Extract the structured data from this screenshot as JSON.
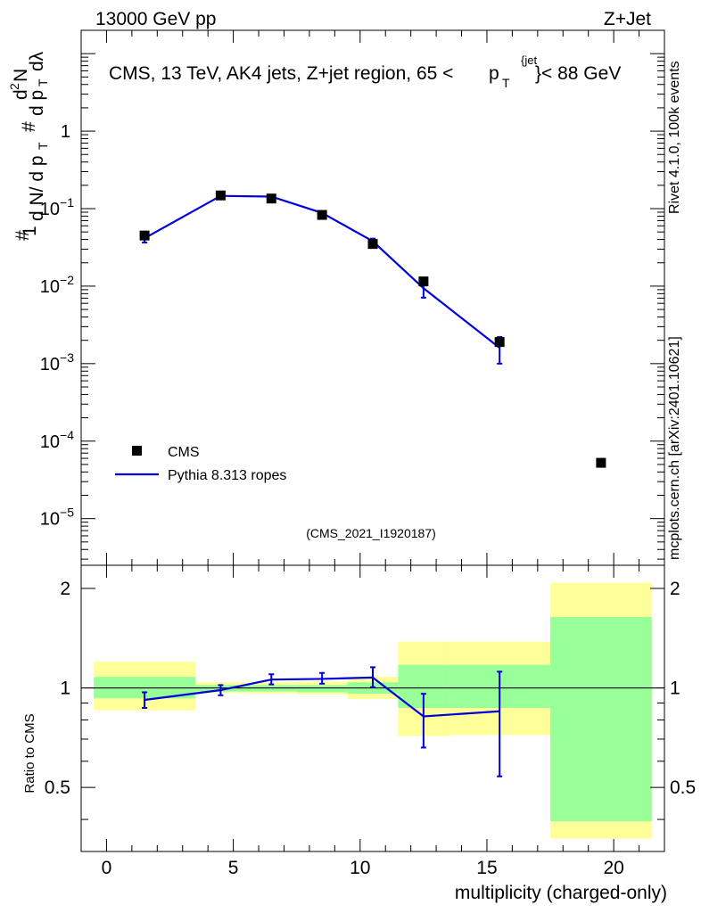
{
  "header": {
    "left": "13000 GeV pp",
    "right": "Z+Jet"
  },
  "side_labels": {
    "rivet": "Rivet 4.1.0,  100k events",
    "mcplots": "mcplots.cern.ch [arXiv:2401.10621]"
  },
  "chart_data": [
    {
      "type": "scatter",
      "title": "CMS, 13 TeV, AK4 jets, Z+jet region, 65 <p_T^{jet}< 88 GeV",
      "title_main": "CMS, 13 TeV, AK4 jets, Z+jet region, 65 <",
      "title_p": "p",
      "title_T": "T",
      "title_jet": "{jet",
      "title_tail": "}< 88 GeV",
      "watermark": "(CMS_2021_I1920187)",
      "ylabel": "1/N dN/dp_T d²N/dp_T dλ",
      "yscale": "log",
      "xlim": [
        -1,
        22
      ],
      "ylim": [
        2.5e-06,
        20
      ],
      "y_ticks": [
        {
          "value": 1,
          "base": "1",
          "exp": ""
        },
        {
          "value": 0.1,
          "base": "10",
          "exp": "−1"
        },
        {
          "value": 0.01,
          "base": "10",
          "exp": "−2"
        },
        {
          "value": 0.001,
          "base": "10",
          "exp": "−3"
        },
        {
          "value": 0.0001,
          "base": "10",
          "exp": "−4"
        },
        {
          "value": 1e-05,
          "base": "10",
          "exp": "−5"
        }
      ],
      "legend": [
        {
          "name": "CMS",
          "marker": "square",
          "color": "#000000"
        },
        {
          "name": "Pythia 8.313 ropes",
          "marker": "line",
          "color": "#0000dd"
        }
      ],
      "series": [
        {
          "name": "CMS",
          "x": [
            1.5,
            4.5,
            6.5,
            8.5,
            10.5,
            12.5,
            15.5,
            19.5
          ],
          "y": [
            0.045,
            0.148,
            0.135,
            0.083,
            0.035,
            0.0115,
            0.0019,
            5.25e-05
          ]
        },
        {
          "name": "Pythia 8.313 ropes",
          "x": [
            1.5,
            4.5,
            6.5,
            8.5,
            10.5,
            12.5,
            15.5
          ],
          "y": [
            0.0415,
            0.146,
            0.143,
            0.088,
            0.038,
            0.0094,
            0.0016
          ],
          "yerr_low": [
            0.005,
            0.004,
            0.004,
            0.003,
            0.003,
            0.0023,
            0.0006
          ],
          "yerr_high": [
            0.005,
            0.004,
            0.004,
            0.003,
            0.003,
            0.0023,
            0.0006
          ]
        }
      ]
    },
    {
      "type": "line",
      "ylabel": "Ratio to CMS",
      "xlabel": "multiplicity (charged-only)",
      "xlim": [
        -1,
        22
      ],
      "ylim": [
        0.32,
        2.35
      ],
      "x_ticks": [
        0,
        5,
        10,
        15,
        20
      ],
      "y_ticks": [
        0.5,
        1,
        2
      ],
      "reference": 1,
      "bands": [
        {
          "x0": -0.5,
          "x1": 3.5,
          "inner": [
            0.93,
            1.08
          ],
          "outer": [
            0.855,
            1.2
          ]
        },
        {
          "x0": 3.5,
          "x1": 5.5,
          "inner": [
            0.975,
            1.02
          ],
          "outer": [
            0.965,
            1.04
          ]
        },
        {
          "x0": 5.5,
          "x1": 7.5,
          "inner": [
            0.975,
            1.02
          ],
          "outer": [
            0.962,
            1.04
          ]
        },
        {
          "x0": 7.5,
          "x1": 9.5,
          "inner": [
            0.97,
            1.02
          ],
          "outer": [
            0.955,
            1.045
          ]
        },
        {
          "x0": 9.5,
          "x1": 11.5,
          "inner": [
            0.96,
            1.04
          ],
          "outer": [
            0.925,
            1.08
          ]
        },
        {
          "x0": 11.5,
          "x1": 13.5,
          "inner": [
            0.87,
            1.175
          ],
          "outer": [
            0.715,
            1.38
          ]
        },
        {
          "x0": 13.5,
          "x1": 17.5,
          "inner": [
            0.87,
            1.175
          ],
          "outer": [
            0.72,
            1.38
          ]
        },
        {
          "x0": 17.5,
          "x1": 21.5,
          "inner": [
            0.395,
            1.64
          ],
          "outer": [
            0.35,
            2.08
          ]
        }
      ],
      "series": [
        {
          "name": "Pythia 8.313 ropes",
          "x": [
            1.5,
            4.5,
            6.5,
            8.5,
            10.5,
            12.5,
            15.5
          ],
          "y": [
            0.92,
            0.985,
            1.06,
            1.065,
            1.075,
            0.82,
            0.85
          ],
          "yerr_low": [
            0.05,
            0.035,
            0.035,
            0.035,
            0.07,
            0.16,
            0.31
          ],
          "yerr_high": [
            0.05,
            0.035,
            0.04,
            0.045,
            0.08,
            0.14,
            0.27
          ]
        }
      ]
    }
  ],
  "colors": {
    "line": "#0000dd",
    "inner_band": "#99ff99",
    "outer_band": "#ffff99",
    "side_text": "#888888",
    "watermark": "#999999"
  }
}
